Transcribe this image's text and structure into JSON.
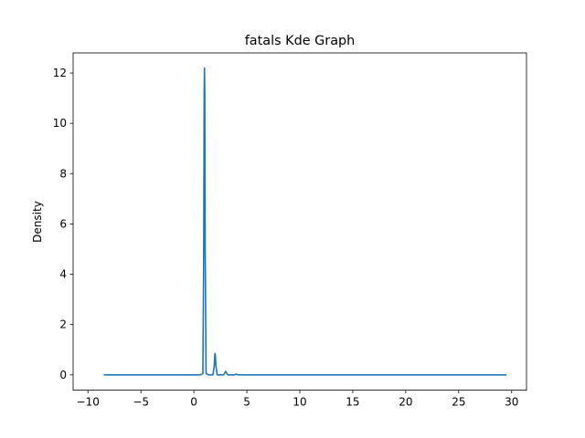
{
  "chart_data": {
    "type": "line",
    "title": "fatals Kde Graph",
    "xlabel": "",
    "ylabel": "Density",
    "xlim": [
      -11.4,
      31.4
    ],
    "ylim": [
      -0.61,
      12.8
    ],
    "xticks": [
      -10,
      -5,
      0,
      5,
      10,
      15,
      20,
      25,
      30
    ],
    "xtick_labels": [
      "−10",
      "−5",
      "0",
      "5",
      "10",
      "15",
      "20",
      "25",
      "30"
    ],
    "yticks": [
      0,
      2,
      4,
      6,
      8,
      10,
      12
    ],
    "ytick_labels": [
      "0",
      "2",
      "4",
      "6",
      "8",
      "10",
      "12"
    ],
    "grid": false,
    "legend": "none",
    "series": [
      {
        "color": "#1f77b4",
        "x": [
          -8.5,
          0.0,
          0.6,
          0.85,
          0.93,
          0.97,
          1.0,
          1.03,
          1.07,
          1.15,
          1.4,
          1.8,
          1.92,
          1.97,
          2.0,
          2.03,
          2.08,
          2.2,
          2.8,
          2.93,
          3.0,
          3.07,
          3.2,
          3.85,
          4.0,
          4.15,
          5.0,
          29.5
        ],
        "y": [
          0.0,
          0.0,
          0.0,
          0.05,
          5.0,
          11.2,
          12.2,
          11.2,
          5.0,
          0.05,
          0.0,
          0.0,
          0.35,
          0.75,
          0.85,
          0.75,
          0.35,
          0.0,
          0.0,
          0.08,
          0.14,
          0.08,
          0.0,
          0.0,
          0.03,
          0.0,
          0.0,
          0.0
        ]
      }
    ]
  }
}
